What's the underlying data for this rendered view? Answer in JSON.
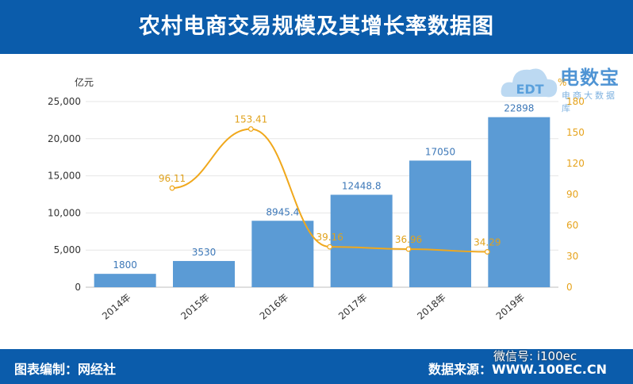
{
  "header": {
    "title": "农村电商交易规模及其增长率数据图"
  },
  "logo": {
    "main": "电数宝",
    "sub": "电商大数据库",
    "mark": "EDT"
  },
  "footer": {
    "left": "图表编制：网经社",
    "right": "数据来源：WWW.100EC.CN",
    "wechat": "微信号: i100ec"
  },
  "colors": {
    "header_bg": "#0b5cab",
    "bar": "#5b9bd5",
    "line": "#f0a81c"
  },
  "chart_data": {
    "type": "bar",
    "categories": [
      "2014年",
      "2015年",
      "2016年",
      "2017年",
      "2018年",
      "2019年"
    ],
    "series": [
      {
        "values": [
          1800,
          3530,
          8945.4,
          12448.8,
          17050,
          22898
        ],
        "labels": [
          "1800",
          "3530",
          "8945.4",
          "12448.8",
          "17050",
          "22898"
        ],
        "type": "bar",
        "axis": "left"
      },
      {
        "values": [
          null,
          96.11,
          153.41,
          39.16,
          36.96,
          34.29
        ],
        "labels": [
          "",
          "96.11",
          "153.41",
          "39.16",
          "36.96",
          "34.29"
        ],
        "type": "line",
        "axis": "right"
      }
    ],
    "ylabel": "亿元",
    "ylabel_right": "%",
    "ylim": [
      0,
      25000
    ],
    "ylim_right": [
      0,
      180
    ],
    "yticks": [
      "0",
      "5,000",
      "10,000",
      "15,000",
      "20,000",
      "25,000"
    ],
    "yticks_right": [
      "0",
      "30",
      "60",
      "90",
      "120",
      "150",
      "180"
    ],
    "grid": true
  }
}
